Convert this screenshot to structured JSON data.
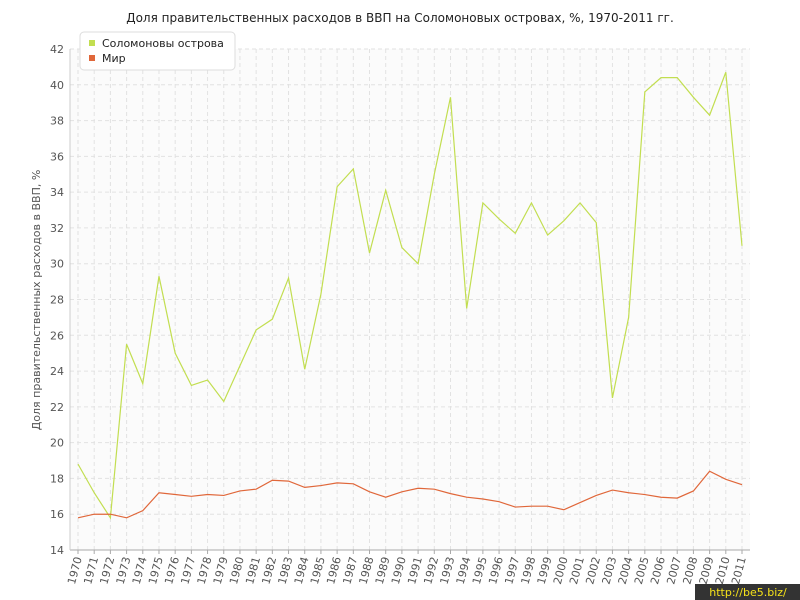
{
  "chart_data": {
    "type": "line",
    "title": "Доля правительственных расходов в ВВП на Соломоновых островах, %, 1970-2011 гг.",
    "y_label": "Доля правительственных расходов в ВВП, %",
    "watermark": "http://be5.biz/",
    "categories": [
      "1970",
      "1971",
      "1972",
      "1973",
      "1974",
      "1975",
      "1976",
      "1977",
      "1978",
      "1979",
      "1980",
      "1981",
      "1982",
      "1983",
      "1984",
      "1985",
      "1986",
      "1987",
      "1988",
      "1989",
      "1990",
      "1991",
      "1992",
      "1993",
      "1994",
      "1995",
      "1996",
      "1997",
      "1998",
      "1999",
      "2000",
      "2001",
      "2002",
      "2003",
      "2004",
      "2005",
      "2006",
      "2007",
      "2008",
      "2009",
      "2010",
      "2011"
    ],
    "series": [
      {
        "name": "Соломоновы острова",
        "color": "#c2de50",
        "values": [
          18.8,
          17.2,
          15.8,
          25.5,
          23.3,
          29.3,
          25.0,
          23.2,
          23.5,
          22.3,
          24.3,
          26.3,
          26.9,
          29.2,
          24.1,
          28.3,
          34.3,
          35.3,
          30.6,
          34.1,
          30.9,
          30.0,
          35.0,
          39.3,
          27.5,
          33.4,
          32.5,
          31.7,
          33.4,
          31.6,
          32.4,
          33.4,
          32.3,
          22.5,
          27.0,
          39.6,
          40.4,
          40.4,
          39.3,
          38.3,
          40.7,
          31.0
        ]
      },
      {
        "name": "Мир",
        "color": "#e0673a",
        "values": [
          15.8,
          16.0,
          16.0,
          15.8,
          16.2,
          17.2,
          17.1,
          17.0,
          17.1,
          17.05,
          17.3,
          17.4,
          17.9,
          17.85,
          17.5,
          17.6,
          17.75,
          17.7,
          17.25,
          16.95,
          17.25,
          17.45,
          17.4,
          17.15,
          16.95,
          16.85,
          16.7,
          16.4,
          16.45,
          16.45,
          16.25,
          16.65,
          17.05,
          17.35,
          17.2,
          17.1,
          16.95,
          16.9,
          17.3,
          18.4,
          17.95,
          17.65
        ]
      }
    ],
    "ylim": [
      14,
      42
    ],
    "yticks": [
      14,
      16,
      18,
      20,
      22,
      24,
      26,
      28,
      30,
      32,
      34,
      36,
      38,
      40,
      42
    ],
    "grid": true,
    "legend": "top-left"
  }
}
